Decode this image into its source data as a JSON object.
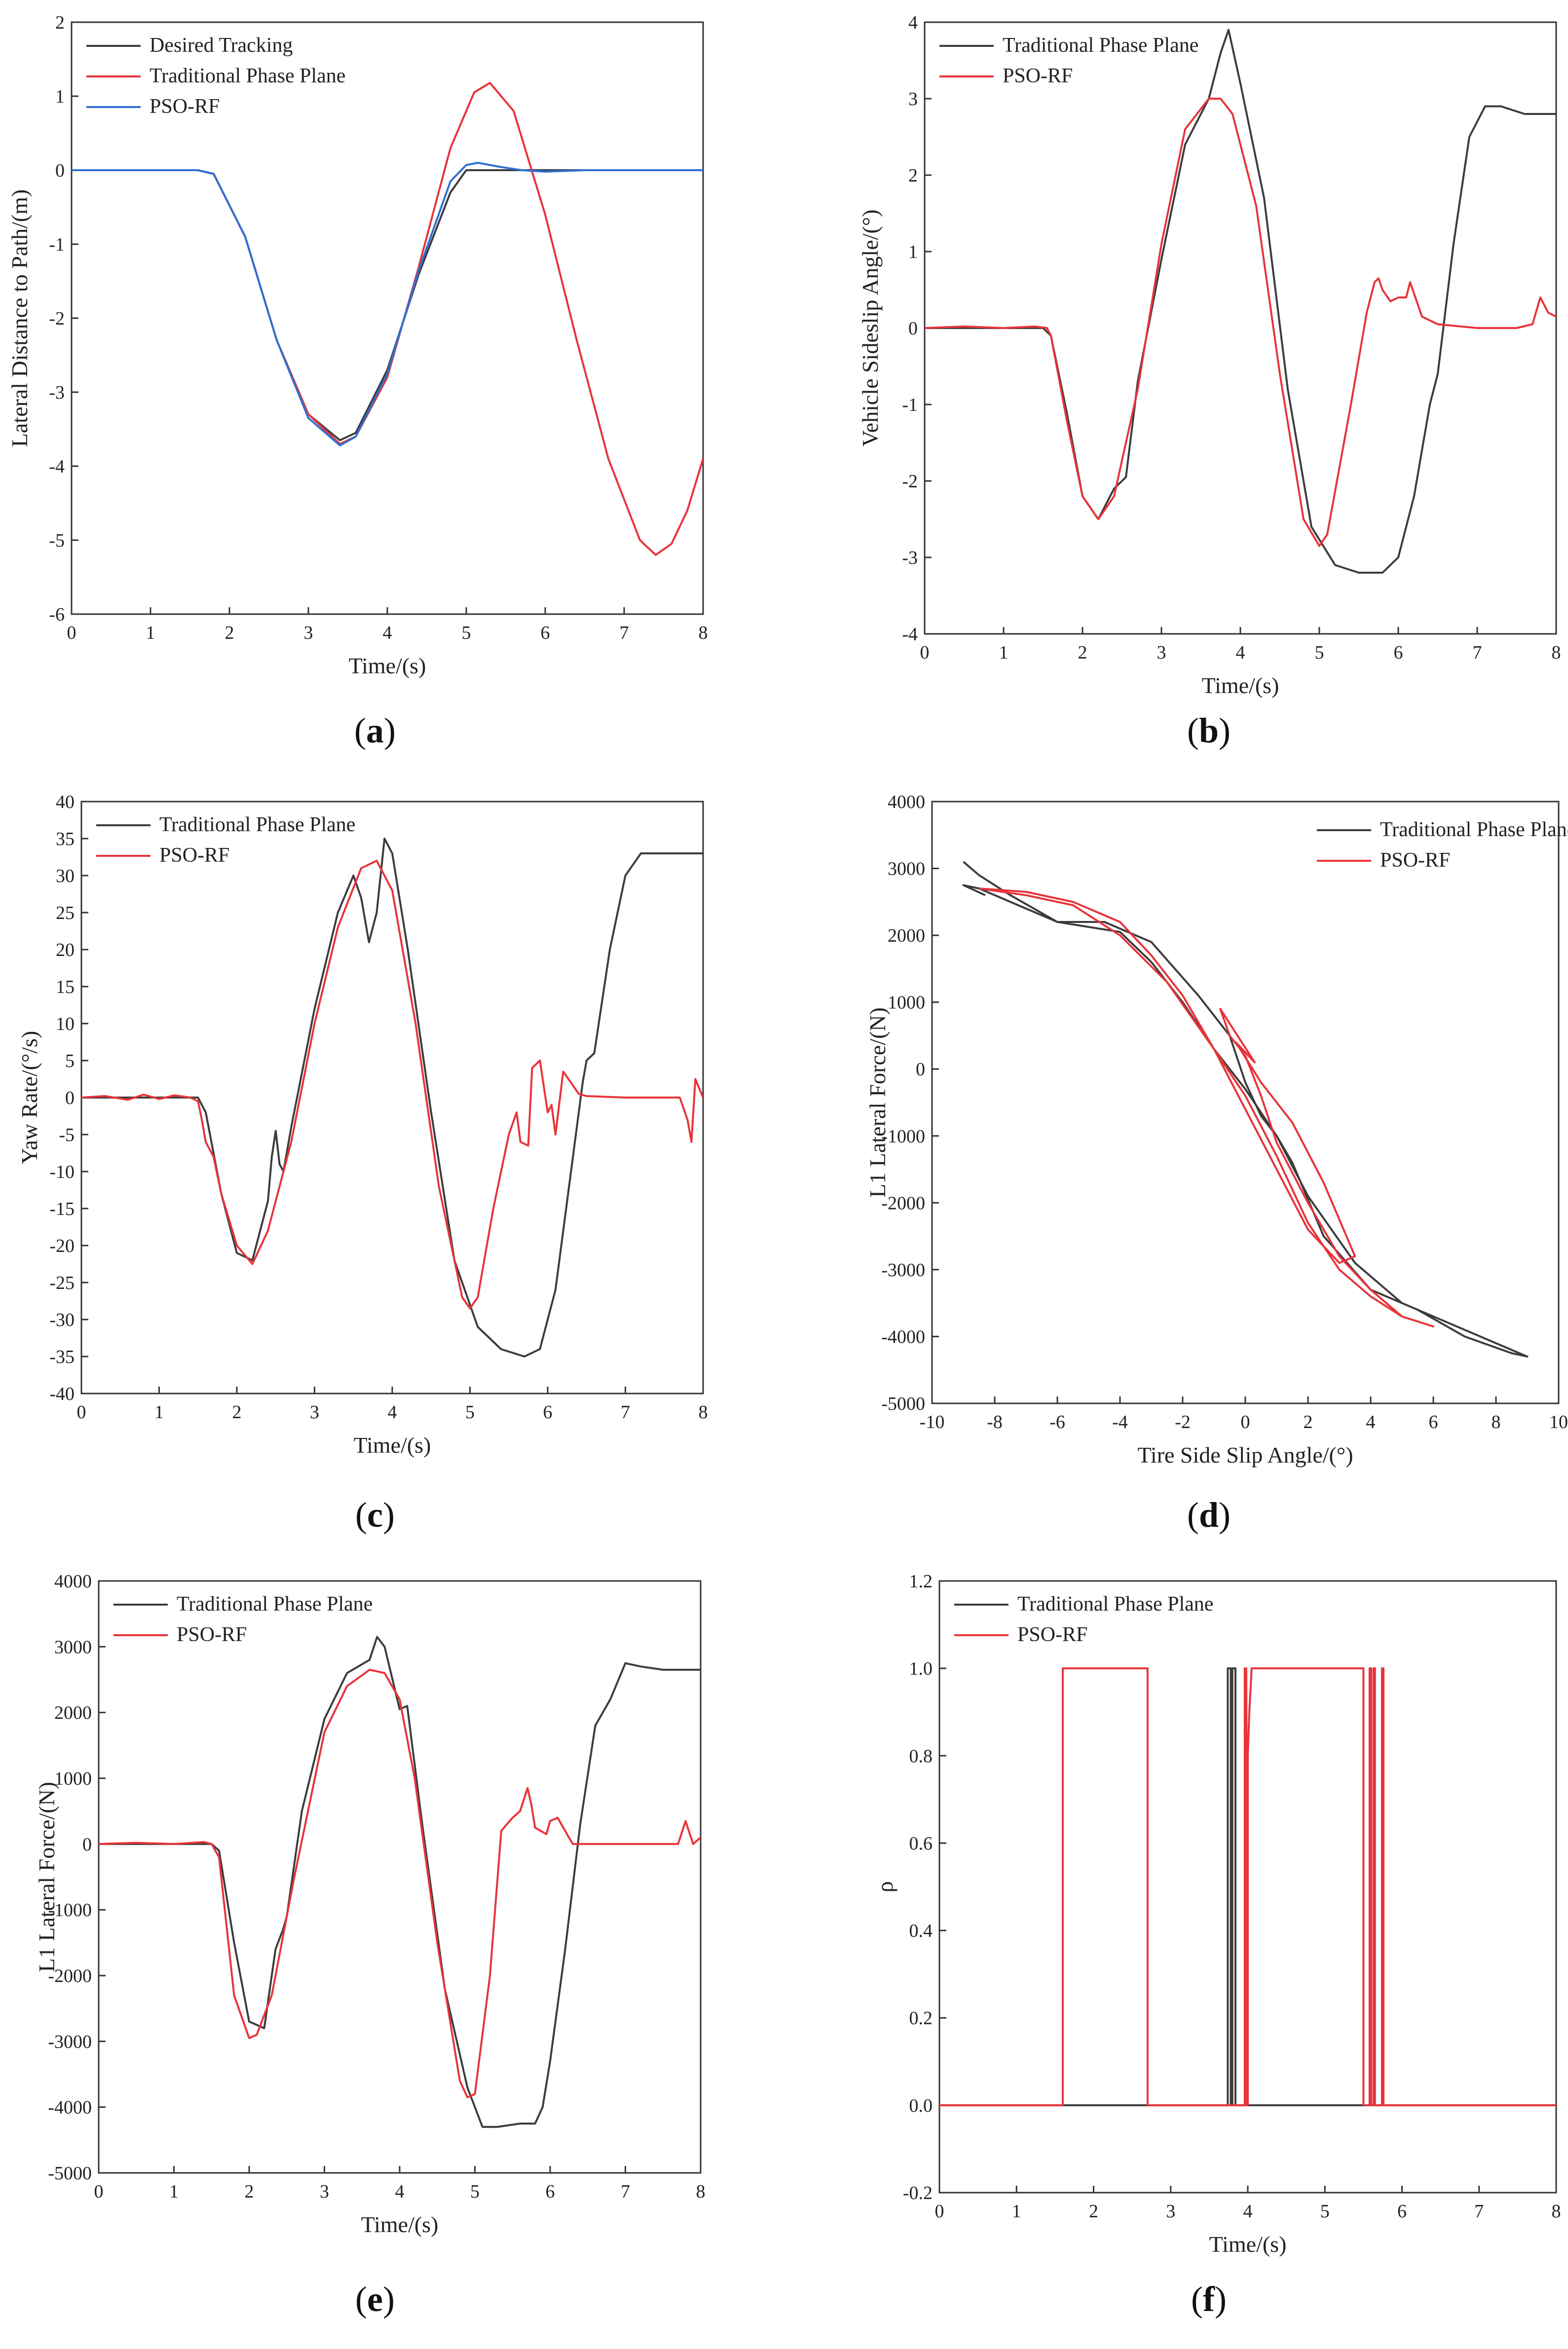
{
  "colors": {
    "desired": "#3c3c3c",
    "traditional_phase_plane": "#e8333a",
    "pso_rf": "#2f6fd1",
    "traditional_black": "#3c3c3c"
  },
  "chart_data": [
    {
      "id": "a",
      "type": "line",
      "caption_letter": "a",
      "xlabel": "Time/(s)",
      "ylabel": "Lateral Distance to Path/(m)",
      "xlim": [
        0,
        8
      ],
      "ylim": [
        -6,
        2
      ],
      "xticks": [
        0,
        1,
        2,
        3,
        4,
        5,
        6,
        7,
        8
      ],
      "yticks": [
        -6,
        -5,
        -4,
        -3,
        -2,
        -1,
        0,
        1,
        2
      ],
      "legend": [
        "Desired Tracking",
        "Traditional Phase Plane",
        "PSO-RF"
      ],
      "series": [
        {
          "name": "Desired Tracking",
          "color": "#3c3c3c",
          "x": [
            0,
            1.6,
            1.8,
            2.2,
            2.6,
            3.0,
            3.4,
            3.6,
            4.0,
            4.4,
            4.8,
            5.0,
            5.2,
            6.0,
            8.0
          ],
          "y": [
            0,
            0,
            -0.05,
            -0.9,
            -2.3,
            -3.3,
            -3.65,
            -3.55,
            -2.7,
            -1.4,
            -0.3,
            0.0,
            0.0,
            0.0,
            0.0
          ]
        },
        {
          "name": "Traditional Phase Plane",
          "color": "#e8333a",
          "x": [
            0,
            1.6,
            1.8,
            2.2,
            2.6,
            3.0,
            3.4,
            3.6,
            4.0,
            4.4,
            4.8,
            5.1,
            5.3,
            5.6,
            6.0,
            6.4,
            6.8,
            7.2,
            7.4,
            7.6,
            7.8,
            8.0
          ],
          "y": [
            0,
            0,
            -0.05,
            -0.9,
            -2.3,
            -3.3,
            -3.7,
            -3.6,
            -2.8,
            -1.3,
            0.3,
            1.05,
            1.18,
            0.8,
            -0.6,
            -2.3,
            -3.9,
            -5.0,
            -5.2,
            -5.05,
            -4.6,
            -3.9
          ]
        },
        {
          "name": "PSO-RF",
          "color": "#2f6fd1",
          "x": [
            0,
            1.6,
            1.8,
            2.2,
            2.6,
            3.0,
            3.4,
            3.6,
            4.0,
            4.4,
            4.8,
            5.0,
            5.15,
            5.4,
            5.7,
            6.0,
            6.5,
            8.0
          ],
          "y": [
            0,
            0,
            -0.05,
            -0.9,
            -2.3,
            -3.35,
            -3.72,
            -3.6,
            -2.75,
            -1.35,
            -0.15,
            0.07,
            0.1,
            0.05,
            0.0,
            -0.02,
            0.0,
            0.0
          ]
        }
      ]
    },
    {
      "id": "b",
      "type": "line",
      "caption_letter": "b",
      "xlabel": "Time/(s)",
      "ylabel": "Vehicle Sideslip Angle/(°)",
      "xlim": [
        0,
        8
      ],
      "ylim": [
        -4,
        4
      ],
      "xticks": [
        0,
        1,
        2,
        3,
        4,
        5,
        6,
        7,
        8
      ],
      "yticks": [
        -4,
        -3,
        -2,
        -1,
        0,
        1,
        2,
        3,
        4
      ],
      "legend": [
        "Traditional Phase Plane",
        "PSO-RF"
      ],
      "series": [
        {
          "name": "Traditional Phase Plane",
          "color": "#3c3c3c",
          "x": [
            0,
            1.5,
            1.6,
            1.8,
            2.0,
            2.2,
            2.4,
            2.5,
            2.55,
            2.7,
            3.0,
            3.3,
            3.6,
            3.75,
            3.85,
            4.0,
            4.3,
            4.6,
            4.9,
            5.2,
            5.5,
            5.8,
            6.0,
            6.2,
            6.4,
            6.5,
            6.7,
            6.9,
            7.1,
            7.3,
            7.6,
            8.0
          ],
          "y": [
            0,
            0,
            -0.1,
            -1.1,
            -2.2,
            -2.5,
            -2.1,
            -2.0,
            -1.95,
            -0.7,
            0.9,
            2.4,
            3.0,
            3.6,
            3.9,
            3.2,
            1.7,
            -0.8,
            -2.6,
            -3.1,
            -3.2,
            -3.2,
            -3.0,
            -2.2,
            -1.0,
            -0.6,
            1.1,
            2.5,
            2.9,
            2.9,
            2.8,
            2.8
          ]
        },
        {
          "name": "PSO-RF",
          "color": "#e8333a",
          "x": [
            0,
            0.5,
            1.0,
            1.4,
            1.55,
            1.6,
            1.8,
            2.0,
            2.2,
            2.4,
            2.7,
            3.0,
            3.3,
            3.6,
            3.75,
            3.9,
            4.2,
            4.5,
            4.8,
            5.0,
            5.1,
            5.4,
            5.6,
            5.7,
            5.75,
            5.8,
            5.9,
            6.0,
            6.1,
            6.15,
            6.2,
            6.3,
            6.5,
            7.0,
            7.5,
            7.7,
            7.8,
            7.9,
            8.0
          ],
          "y": [
            0,
            0.02,
            0,
            0.02,
            0,
            -0.1,
            -1.2,
            -2.2,
            -2.5,
            -2.2,
            -0.8,
            1.1,
            2.6,
            3.0,
            3.0,
            2.8,
            1.6,
            -0.6,
            -2.5,
            -2.85,
            -2.7,
            -1.0,
            0.2,
            0.6,
            0.65,
            0.5,
            0.35,
            0.4,
            0.4,
            0.6,
            0.45,
            0.15,
            0.05,
            0,
            0,
            0.05,
            0.4,
            0.2,
            0.15
          ]
        }
      ]
    },
    {
      "id": "c",
      "type": "line",
      "caption_letter": "c",
      "xlabel": "Time/(s)",
      "ylabel": "Yaw Rate/(°/s)",
      "xlim": [
        0,
        8
      ],
      "ylim": [
        -40,
        40
      ],
      "xticks": [
        0,
        1,
        2,
        3,
        4,
        5,
        6,
        7,
        8
      ],
      "yticks": [
        -40,
        -35,
        -30,
        -25,
        -20,
        -15,
        -10,
        -5,
        0,
        5,
        10,
        15,
        20,
        25,
        30,
        35,
        40
      ],
      "legend": [
        "Traditional Phase Plane",
        "PSO-RF"
      ],
      "series": [
        {
          "name": "Traditional Phase Plane",
          "color": "#3c3c3c",
          "x": [
            0,
            1.5,
            1.6,
            1.8,
            2.0,
            2.2,
            2.4,
            2.45,
            2.5,
            2.55,
            2.6,
            2.7,
            3.0,
            3.3,
            3.5,
            3.6,
            3.7,
            3.8,
            3.9,
            4.0,
            4.2,
            4.5,
            4.8,
            5.1,
            5.4,
            5.7,
            5.9,
            6.1,
            6.3,
            6.45,
            6.5,
            6.6,
            6.8,
            7.0,
            7.2,
            7.5,
            8.0
          ],
          "y": [
            0,
            0,
            -2,
            -13,
            -21,
            -22,
            -14,
            -8,
            -4.5,
            -9,
            -10,
            -4,
            12,
            25,
            30,
            27,
            21,
            25,
            35,
            33,
            20,
            -2,
            -22,
            -31,
            -34,
            -35,
            -34,
            -26,
            -10,
            2,
            5,
            6,
            20,
            30,
            33,
            33,
            33
          ]
        },
        {
          "name": "PSO-RF",
          "color": "#e8333a",
          "x": [
            0,
            0.3,
            0.6,
            0.8,
            1.0,
            1.2,
            1.4,
            1.5,
            1.55,
            1.6,
            1.7,
            1.8,
            2.0,
            2.2,
            2.4,
            2.7,
            3.0,
            3.3,
            3.6,
            3.8,
            4.0,
            4.3,
            4.6,
            4.9,
            5.0,
            5.1,
            5.3,
            5.5,
            5.6,
            5.65,
            5.75,
            5.8,
            5.9,
            6.0,
            6.05,
            6.1,
            6.2,
            6.3,
            6.4,
            6.5,
            7.0,
            7.5,
            7.7,
            7.8,
            7.85,
            7.9,
            8.0
          ],
          "y": [
            0,
            0.2,
            -0.3,
            0.4,
            -0.2,
            0.3,
            0,
            -0.5,
            -3,
            -6,
            -8,
            -13,
            -20,
            -22.5,
            -18,
            -6,
            10,
            23,
            31,
            32,
            28,
            10,
            -12,
            -27,
            -28.5,
            -27,
            -15,
            -5,
            -2,
            -6,
            -6.5,
            4,
            5,
            -2,
            -1,
            -5,
            3.5,
            2,
            0.5,
            0.2,
            0,
            0,
            0,
            -3,
            -6,
            2.5,
            0
          ]
        }
      ]
    },
    {
      "id": "d",
      "type": "line",
      "caption_letter": "d",
      "xlabel": "Tire Side Slip Angle/(°)",
      "ylabel": "L1 Lateral Force/(N)",
      "xlim": [
        -10,
        10
      ],
      "ylim": [
        -5000,
        4000
      ],
      "xticks": [
        -10,
        -8,
        -6,
        -4,
        -2,
        0,
        2,
        4,
        6,
        8,
        10
      ],
      "yticks": [
        -5000,
        -4000,
        -3000,
        -2000,
        -1000,
        0,
        1000,
        2000,
        3000,
        4000
      ],
      "legend": [
        "Traditional Phase Plane",
        "PSO-RF"
      ],
      "series": [
        {
          "name": "Traditional Phase Plane",
          "color": "#3c3c3c",
          "x": [
            -9,
            -8.5,
            -7.5,
            -6,
            -4,
            -3,
            -2,
            -1,
            0,
            1,
            2,
            3.5,
            5,
            6.5,
            8,
            9,
            8.5,
            7,
            5.5,
            4,
            2.5,
            1.5,
            1.0,
            0.5,
            0,
            -0.5,
            -1.5,
            -3,
            -4.5,
            -6,
            -7.5,
            -8.5,
            -9,
            -8.3
          ],
          "y": [
            3100,
            2900,
            2600,
            2200,
            2050,
            1600,
            1000,
            300,
            -300,
            -1000,
            -1900,
            -2900,
            -3500,
            -3800,
            -4100,
            -4300,
            -4250,
            -4000,
            -3600,
            -3300,
            -2500,
            -1400,
            -1000,
            -700,
            -200,
            500,
            1100,
            1900,
            2200,
            2200,
            2500,
            2700,
            2750,
            2600
          ]
        },
        {
          "name": "PSO-RF",
          "color": "#e8333a",
          "x": [
            -8.5,
            -7,
            -5.5,
            -4,
            -3,
            -2,
            -1,
            0,
            1,
            2,
            3,
            4,
            5,
            6,
            5,
            4,
            3,
            2,
            1,
            0.5,
            0,
            -0.5,
            -0.8,
            0.3,
            -0.3,
            0.5,
            1.5,
            2.5,
            3.5,
            3.0,
            2.0,
            1.0,
            0,
            -1,
            -2.5,
            -4,
            -5.5,
            -7,
            -8.5
          ],
          "y": [
            2700,
            2650,
            2500,
            2200,
            1700,
            1100,
            300,
            -400,
            -1300,
            -2300,
            -3000,
            -3400,
            -3700,
            -3850,
            -3700,
            -3300,
            -2800,
            -2000,
            -1100,
            -400,
            200,
            500,
            900,
            100,
            400,
            -200,
            -800,
            -1700,
            -2800,
            -2900,
            -2400,
            -1500,
            -600,
            300,
            1300,
            2000,
            2450,
            2600,
            2700
          ]
        }
      ]
    },
    {
      "id": "e",
      "type": "line",
      "caption_letter": "e",
      "xlabel": "Time/(s)",
      "ylabel": "L1 Lateral Force/(N)",
      "xlim": [
        0,
        8
      ],
      "ylim": [
        -5000,
        4000
      ],
      "xticks": [
        0,
        1,
        2,
        3,
        4,
        5,
        6,
        7,
        8
      ],
      "yticks": [
        -5000,
        -4000,
        -3000,
        -2000,
        -1000,
        0,
        1000,
        2000,
        3000,
        4000
      ],
      "legend": [
        "Traditional Phase Plane",
        "PSO-RF"
      ],
      "series": [
        {
          "name": "Traditional Phase Plane",
          "color": "#3c3c3c",
          "x": [
            0,
            1.5,
            1.6,
            1.8,
            2.0,
            2.2,
            2.35,
            2.45,
            2.5,
            2.7,
            3.0,
            3.3,
            3.6,
            3.7,
            3.8,
            4.0,
            4.1,
            4.3,
            4.6,
            4.9,
            5.1,
            5.3,
            5.6,
            5.8,
            5.9,
            6.0,
            6.2,
            6.4,
            6.6,
            6.8,
            7.0,
            7.2,
            7.5,
            8.0
          ],
          "y": [
            0,
            0,
            -100,
            -1500,
            -2700,
            -2800,
            -1600,
            -1300,
            -1100,
            500,
            1900,
            2600,
            2800,
            3150,
            3000,
            2050,
            2100,
            300,
            -2200,
            -3700,
            -4300,
            -4300,
            -4250,
            -4250,
            -4000,
            -3300,
            -1600,
            300,
            1800,
            2200,
            2750,
            2700,
            2650,
            2650
          ]
        },
        {
          "name": "PSO-RF",
          "color": "#e8333a",
          "x": [
            0,
            0.5,
            1.0,
            1.4,
            1.5,
            1.6,
            1.8,
            2.0,
            2.1,
            2.3,
            2.6,
            3.0,
            3.3,
            3.6,
            3.8,
            4.0,
            4.2,
            4.5,
            4.8,
            4.9,
            5.0,
            5.2,
            5.35,
            5.5,
            5.6,
            5.7,
            5.75,
            5.8,
            5.95,
            6.0,
            6.1,
            6.2,
            6.3,
            6.5,
            7.0,
            7.5,
            7.7,
            7.8,
            7.9,
            8.0
          ],
          "y": [
            0,
            20,
            0,
            30,
            0,
            -200,
            -2300,
            -2950,
            -2900,
            -2300,
            -500,
            1700,
            2400,
            2650,
            2600,
            2200,
            1000,
            -1500,
            -3600,
            -3850,
            -3800,
            -2000,
            200,
            400,
            500,
            850,
            600,
            250,
            150,
            350,
            400,
            200,
            0,
            0,
            0,
            0,
            0,
            350,
            0,
            100
          ]
        }
      ]
    },
    {
      "id": "f",
      "type": "line",
      "caption_letter": "f",
      "xlabel": "Time/(s)",
      "ylabel": "ρ",
      "xlim": [
        0,
        8
      ],
      "ylim": [
        -0.2,
        1.2
      ],
      "xticks": [
        0,
        1,
        2,
        3,
        4,
        5,
        6,
        7,
        8
      ],
      "yticks": [
        -0.2,
        0.0,
        0.2,
        0.4,
        0.6,
        0.8,
        1.0,
        1.2
      ],
      "tick_decimals": 1,
      "legend": [
        "Traditional Phase Plane",
        "PSO-RF"
      ],
      "series": [
        {
          "name": "Traditional Phase Plane",
          "color": "#3c3c3c",
          "x": [
            0,
            3.74,
            3.74,
            3.78,
            3.78,
            3.8,
            3.8,
            3.84,
            3.84,
            8.0
          ],
          "y": [
            0,
            0,
            1,
            1,
            0,
            0,
            1,
            1,
            0,
            0
          ]
        },
        {
          "name": "PSO-RF",
          "color": "#e8333a",
          "x": [
            0,
            1.6,
            1.6,
            2.7,
            2.7,
            3.96,
            3.96,
            3.98,
            3.98,
            4.0,
            4.0,
            4.02,
            4.05,
            5.5,
            5.5,
            5.58,
            5.58,
            5.6,
            5.6,
            5.63,
            5.63,
            5.65,
            5.65,
            5.74,
            5.74,
            5.76,
            5.76,
            8.0
          ],
          "y": [
            0,
            0,
            1,
            1,
            0,
            0,
            1,
            0,
            1,
            0,
            0.8,
            0.9,
            1,
            1,
            0,
            0,
            1,
            1,
            0,
            0,
            1,
            1,
            0,
            0,
            1,
            1,
            0,
            0
          ]
        }
      ]
    }
  ]
}
